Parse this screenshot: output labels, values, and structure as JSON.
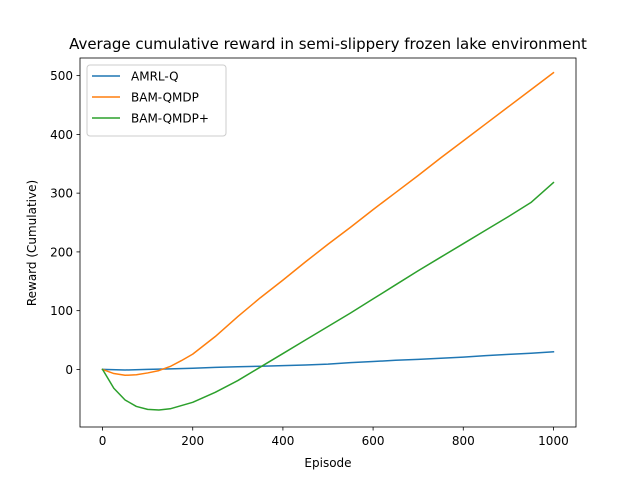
{
  "chart_data": {
    "type": "line",
    "title": "Average cumulative reward in semi-slippery frozen lake environment",
    "xlabel": "Episode",
    "ylabel": "Reward (Cumulative)",
    "xlim": [
      -50,
      1050
    ],
    "ylim": [
      -98,
      530
    ],
    "x_ticks": [
      0,
      200,
      400,
      600,
      800,
      1000
    ],
    "y_ticks": [
      0,
      100,
      200,
      300,
      400,
      500
    ],
    "grid": false,
    "legend_position": "upper-left",
    "series": [
      {
        "name": "AMRL-Q",
        "color": "#1f77b4",
        "x": [
          0,
          50,
          100,
          150,
          200,
          250,
          300,
          350,
          400,
          450,
          500,
          550,
          600,
          650,
          700,
          750,
          800,
          850,
          900,
          950,
          1000
        ],
        "y": [
          0,
          -1,
          0,
          1,
          2,
          3.5,
          4.5,
          5.5,
          6.5,
          7.5,
          9,
          11.5,
          13.5,
          15.5,
          17,
          19,
          21,
          23.5,
          25.5,
          27.5,
          30
        ]
      },
      {
        "name": "BAM-QMDP",
        "color": "#ff7f0e",
        "x": [
          0,
          25,
          50,
          75,
          100,
          125,
          150,
          175,
          200,
          250,
          300,
          350,
          400,
          450,
          500,
          550,
          600,
          650,
          700,
          750,
          800,
          850,
          900,
          950,
          1000
        ],
        "y": [
          0,
          -7,
          -10,
          -9,
          -6,
          -2,
          5,
          15,
          26,
          56,
          90,
          122,
          152,
          183,
          213,
          242,
          272,
          301,
          330,
          360,
          389,
          418,
          447,
          476,
          505
        ]
      },
      {
        "name": "BAM-QMDP+",
        "color": "#2ca02c",
        "x": [
          0,
          25,
          50,
          75,
          100,
          125,
          150,
          200,
          250,
          300,
          350,
          400,
          450,
          500,
          550,
          600,
          650,
          700,
          750,
          800,
          850,
          900,
          950,
          1000
        ],
        "y": [
          0,
          -32,
          -52,
          -63,
          -68,
          -69,
          -67,
          -56,
          -39,
          -19,
          4,
          27,
          50,
          73,
          96,
          120,
          144,
          168,
          191,
          214,
          237,
          260,
          284,
          318
        ]
      }
    ]
  }
}
